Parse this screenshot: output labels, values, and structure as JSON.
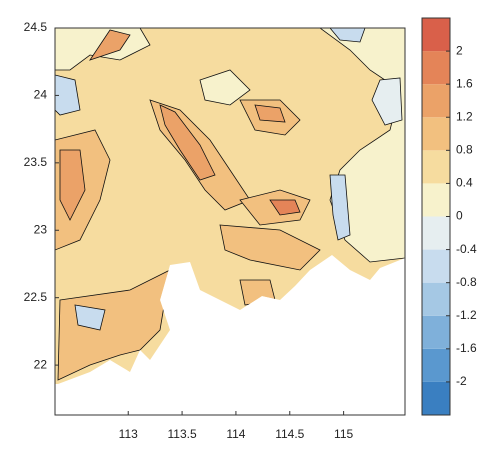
{
  "chart_data": {
    "type": "contour",
    "xlim": [
      112.32,
      115.57
    ],
    "xticks": [
      113,
      113.5,
      114,
      114.5,
      115
    ],
    "ylim": [
      21.63,
      24.5
    ],
    "yticks": [
      22,
      22.5,
      23,
      23.5,
      24,
      24.5
    ],
    "colorbar": {
      "levels": [
        -2.4,
        -2,
        -1.6,
        -1.2,
        -0.8,
        -0.4,
        0,
        0.4,
        0.8,
        1.2,
        1.6,
        2,
        2.4
      ],
      "colors": [
        "#3a7fc1",
        "#5a98cf",
        "#7fb0da",
        "#a5c8e4",
        "#c8dcee",
        "#e6eef0",
        "#f7f2cc",
        "#f6dc9f",
        "#f2c07f",
        "#eba268",
        "#e48458",
        "#d9604a"
      ],
      "ticks": [
        2,
        1.6,
        1.2,
        0.8,
        0.4,
        0,
        -0.4,
        -0.8,
        -1.2,
        -1.6,
        -2
      ]
    }
  }
}
